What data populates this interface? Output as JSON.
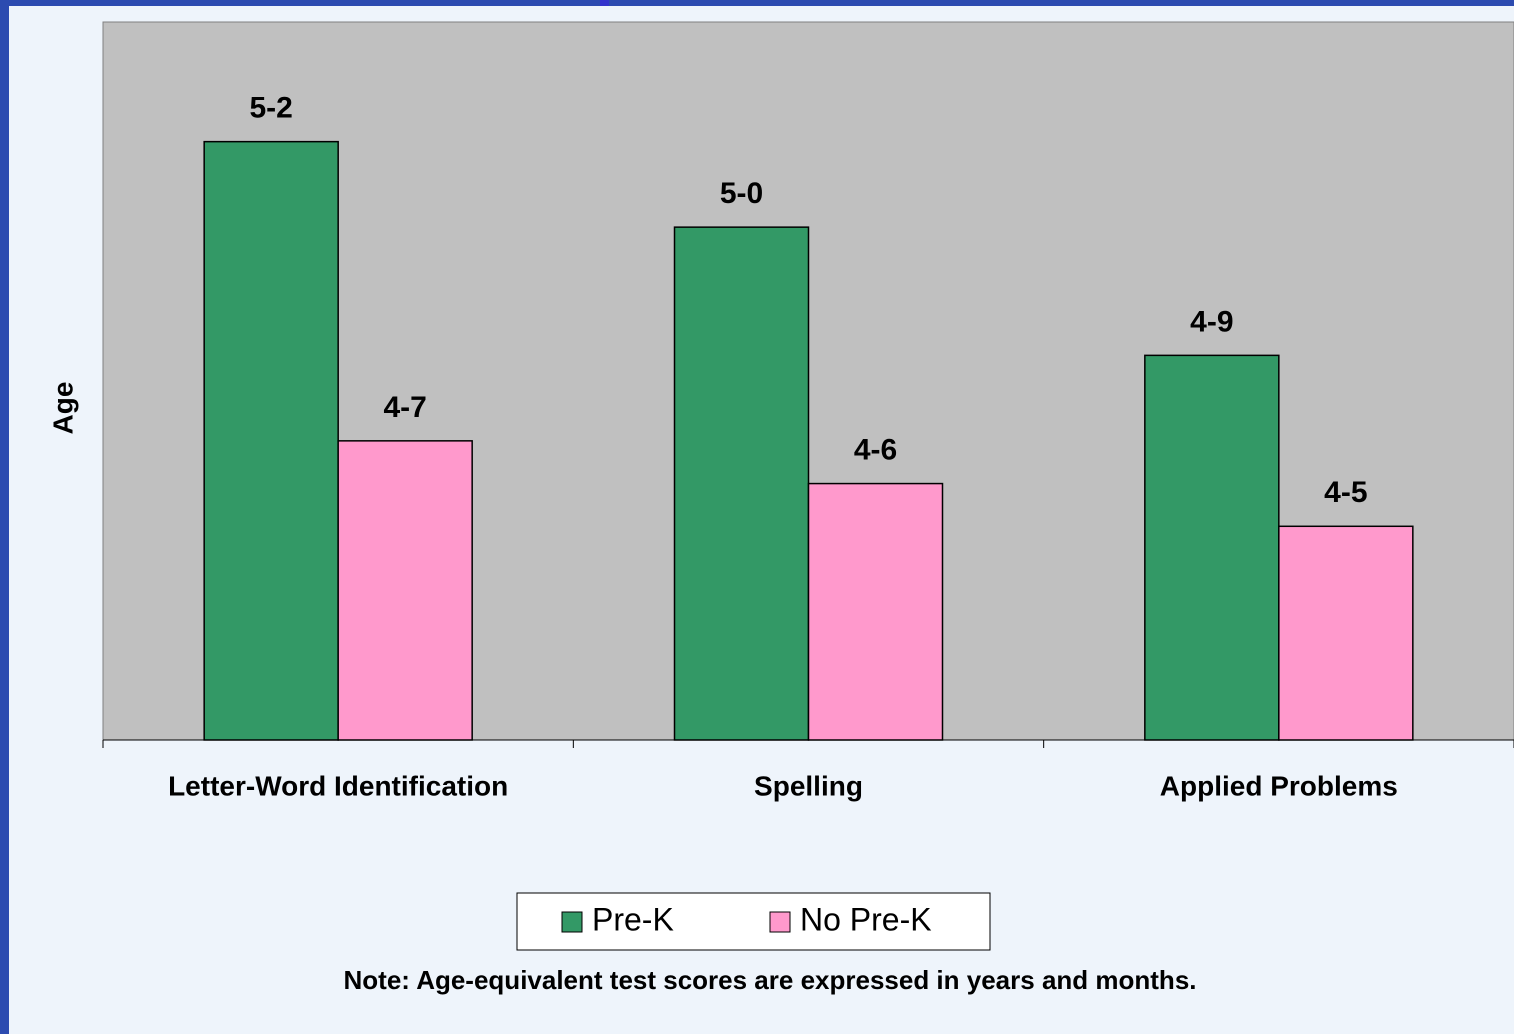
{
  "chart_data": {
    "type": "bar",
    "y_label": "Age",
    "note": "Note: Age-equivalent test scores are expressed in years and months.",
    "categories": [
      "Letter-Word Identification",
      "Spelling",
      "Applied Problems"
    ],
    "series": [
      {
        "name": "Pre-K",
        "color": "#339966",
        "values": [
          5.1667,
          5.0,
          4.75
        ],
        "value_labels": [
          "5-2",
          "5-0",
          "4-9"
        ]
      },
      {
        "name": "No Pre-K",
        "color": "#ff99cc",
        "values": [
          4.5833,
          4.5,
          4.4167
        ],
        "value_labels": [
          "4-7",
          "4-6",
          "4-5"
        ]
      }
    ],
    "ylim": [
      4,
      5.4
    ],
    "legend": "bottom"
  }
}
